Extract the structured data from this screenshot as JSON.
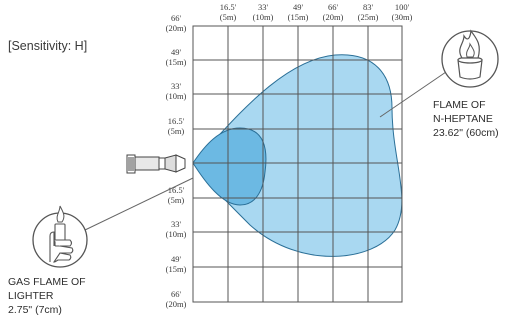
{
  "sensitivity_label": "[Sensitivity: H]",
  "top_axis": [
    {
      "ft": "16.5'",
      "m": "(5m)"
    },
    {
      "ft": "33'",
      "m": "(10m)"
    },
    {
      "ft": "49'",
      "m": "(15m)"
    },
    {
      "ft": "66'",
      "m": "(20m)"
    },
    {
      "ft": "83'",
      "m": "(25m)"
    },
    {
      "ft": "100'",
      "m": "(30m)"
    }
  ],
  "left_axis": [
    {
      "ft": "66'",
      "m": "(20m)"
    },
    {
      "ft": "49'",
      "m": "(15m)"
    },
    {
      "ft": "33'",
      "m": "(10m)"
    },
    {
      "ft": "16.5'",
      "m": "(5m)"
    },
    {
      "ft": "16.5'",
      "m": "(5m)"
    },
    {
      "ft": "33'",
      "m": "(10m)"
    },
    {
      "ft": "49'",
      "m": "(15m)"
    },
    {
      "ft": "66'",
      "m": "(20m)"
    }
  ],
  "heptane_label": {
    "line1": "FLAME OF",
    "line2": "N-HEPTANE",
    "line3": "23.62\" (60cm)"
  },
  "lighter_label": {
    "line1": "GAS FLAME OF",
    "line2": "LIGHTER",
    "line3": "2.75\" (7cm)"
  },
  "colors": {
    "heptane_area": "#a9d8f1",
    "lighter_area": "#6cb9e3",
    "grid_line": "#555555",
    "leader_line": "#666666"
  },
  "icons": [
    "flame-can-icon",
    "hand-lighter-icon",
    "detector-icon"
  ]
}
